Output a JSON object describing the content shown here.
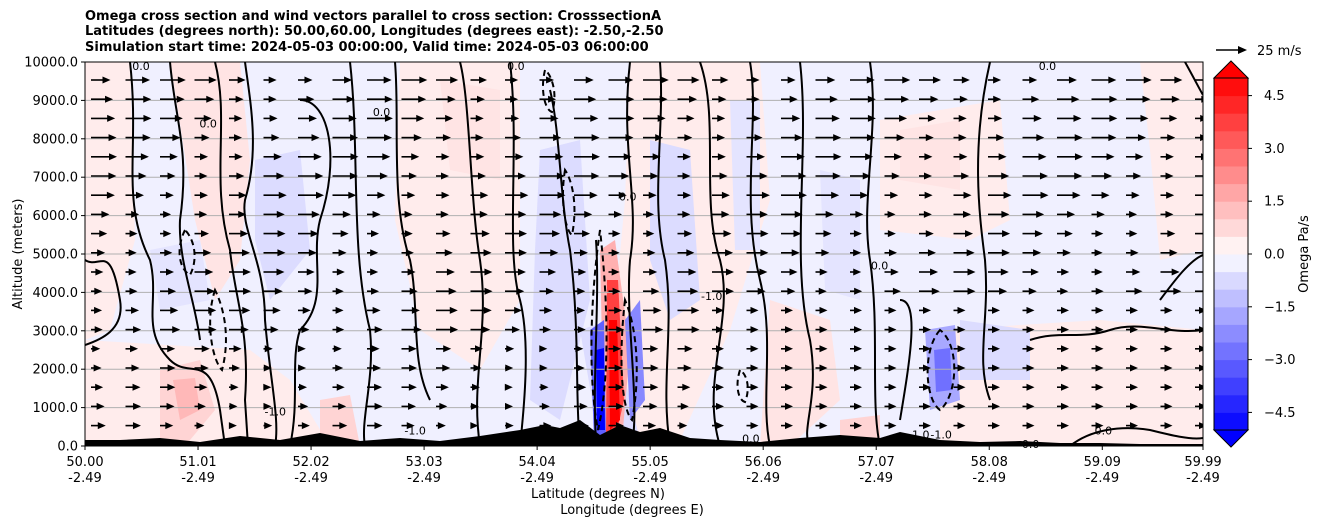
{
  "title_lines": [
    "Omega cross section and wind vectors parallel to cross section: CrosssectionA",
    "Latitudes (degrees north): 50.00,60.00, Longitudes (degrees east): -2.50,-2.50",
    "Simulation start time: 2024-05-03 00:00:00, Valid time: 2024-05-03 06:00:00"
  ],
  "chart_data": {
    "type": "contourf",
    "title": "Omega cross section and wind vectors parallel to cross section: CrosssectionA",
    "ylabel": "Altitude (meters)",
    "xlabel_lat": "Latitude (degrees N)",
    "xlabel_lon": "Longitude (degrees E)",
    "ylim": [
      0,
      10000
    ],
    "xlim": [
      50.0,
      59.99
    ],
    "y_ticks": [
      "0.0",
      "1000.0",
      "2000.0",
      "3000.0",
      "4000.0",
      "5000.0",
      "6000.0",
      "7000.0",
      "8000.0",
      "9000.0",
      "10000.0"
    ],
    "y_tick_values": [
      0,
      1000,
      2000,
      3000,
      4000,
      5000,
      6000,
      7000,
      8000,
      9000,
      10000
    ],
    "x_tick_values": [
      50.0,
      51.01,
      52.02,
      53.03,
      54.04,
      55.05,
      56.06,
      57.07,
      58.08,
      59.09,
      59.99
    ],
    "x_tick_lat": [
      "50.00",
      "51.01",
      "52.02",
      "53.03",
      "54.04",
      "55.05",
      "56.06",
      "57.07",
      "58.08",
      "59.09",
      "59.99"
    ],
    "x_tick_lon": [
      "-2.49",
      "-2.49",
      "-2.49",
      "-2.49",
      "-2.49",
      "-2.49",
      "-2.49",
      "-2.49",
      "-2.49",
      "-2.49",
      "-2.49"
    ],
    "colorbar": {
      "label": "Omega Pa/s",
      "ticks": [
        "4.5",
        "3.0",
        "1.5",
        "0.0",
        "−1.5",
        "−3.0",
        "−4.5"
      ],
      "tick_values": [
        4.5,
        3.0,
        1.5,
        0.0,
        -1.5,
        -3.0,
        -4.5
      ],
      "range": [
        -5.0,
        5.0
      ],
      "levels": 20,
      "cmap": "bwr",
      "extend": "both"
    },
    "quiver_key": {
      "label": "25 m/s",
      "value": 25
    },
    "contour_levels": [
      -1.0,
      0.0,
      1.0
    ],
    "contour_labels": [
      {
        "text": "0.0",
        "lat": 50.5,
        "alt": 9900
      },
      {
        "text": "0.0",
        "lat": 53.85,
        "alt": 9900
      },
      {
        "text": "0.0",
        "lat": 58.6,
        "alt": 9900
      },
      {
        "text": "0.0",
        "lat": 51.1,
        "alt": 8400
      },
      {
        "text": "0.0",
        "lat": 52.65,
        "alt": 8700
      },
      {
        "text": "0.0",
        "lat": 54.85,
        "alt": 6500
      },
      {
        "text": "0.0",
        "lat": 57.1,
        "alt": 4700
      },
      {
        "text": "-1.0",
        "lat": 55.6,
        "alt": 3900
      },
      {
        "text": "-1.0",
        "lat": 51.7,
        "alt": 900
      },
      {
        "text": "-1.0",
        "lat": 52.95,
        "alt": 400
      },
      {
        "text": "0.0",
        "lat": 55.95,
        "alt": 200
      },
      {
        "text": "-1.0",
        "lat": 57.45,
        "alt": 300
      },
      {
        "text": "-1.0",
        "lat": 57.65,
        "alt": 300
      },
      {
        "text": "0.0",
        "lat": 59.1,
        "alt": 400
      },
      {
        "text": "0.0",
        "lat": 58.45,
        "alt": 50
      }
    ],
    "strong_features": [
      {
        "sign": "positive",
        "lat": 55.0,
        "alt_top": 5000,
        "note": "narrow ascent/descent column"
      },
      {
        "sign": "negative",
        "lat": 54.65,
        "alt_top": 3000
      },
      {
        "sign": "negative",
        "lat": 57.6,
        "alt_top": 2500
      }
    ]
  }
}
